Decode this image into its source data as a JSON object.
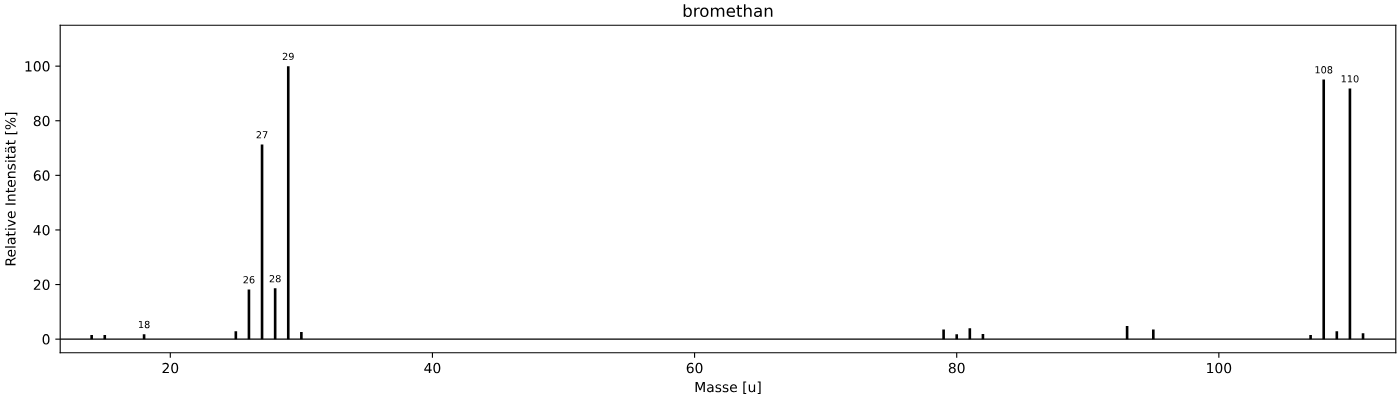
{
  "chart_data": {
    "type": "bar",
    "title": "bromethan",
    "xlabel": "Masse [u]",
    "ylabel": "Relative Intensität [%]",
    "x": [
      14,
      15,
      18,
      25,
      26,
      27,
      28,
      29,
      30,
      79,
      80,
      81,
      82,
      93,
      95,
      107,
      108,
      109,
      110,
      111
    ],
    "series": [
      {
        "color": "#000000",
        "values": [
          1.5,
          1.5,
          1.8,
          2.9,
          18.2,
          71.3,
          18.6,
          100,
          2.6,
          3.5,
          1.8,
          4.0,
          1.9,
          4.8,
          3.5,
          1.5,
          95.1,
          2.9,
          91.8,
          2.2
        ]
      }
    ],
    "annotations": [
      {
        "text": "18",
        "x": 18,
        "y": 1.8
      },
      {
        "text": "26",
        "x": 26,
        "y": 18.2
      },
      {
        "text": "27",
        "x": 27,
        "y": 71.3
      },
      {
        "text": "28",
        "x": 28,
        "y": 18.6
      },
      {
        "text": "29",
        "x": 29,
        "y": 100
      },
      {
        "text": "108",
        "x": 108,
        "y": 95.1
      },
      {
        "text": "110",
        "x": 110,
        "y": 91.8
      }
    ],
    "xlim": [
      11.6,
      113.5
    ],
    "ylim": [
      -5,
      115
    ],
    "xticks": [
      20,
      40,
      60,
      80,
      100
    ],
    "yticks": [
      0,
      20,
      40,
      60,
      80,
      100
    ],
    "ref_lines": [
      {
        "axis": "y",
        "value": 0,
        "color": "#000000"
      }
    ],
    "grid": false,
    "legend": false
  }
}
